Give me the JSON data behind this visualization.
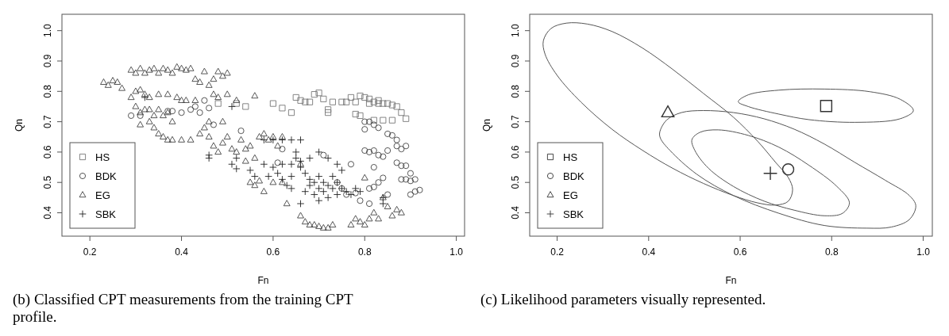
{
  "chart_data": [
    {
      "type": "scatter",
      "xlabel": "Fn",
      "ylabel": "Qn",
      "xlim": [
        0.139,
        1.018
      ],
      "ylim": [
        0.323,
        1.054
      ],
      "xticks": [
        0.2,
        0.4,
        0.6,
        0.8,
        {
          "value": 1,
          "label": "1.0"
        }
      ],
      "yticks": [
        0.4,
        0.5,
        0.6,
        0.7,
        0.8,
        0.9,
        {
          "value": 1,
          "label": "1.0"
        }
      ],
      "legend": "bottom left",
      "grid": false,
      "annotations": [
        "(b) Classified CPT measurements from the training CPT profile."
      ],
      "series": [
        {
          "name": "HS",
          "color": "#777777",
          "marker": "square",
          "x": [
            0.52,
            0.54,
            0.6,
            0.62,
            0.64,
            0.65,
            0.66,
            0.67,
            0.69,
            0.7,
            0.71,
            0.72,
            0.73,
            0.76,
            0.77,
            0.78,
            0.79,
            0.8,
            0.81,
            0.82,
            0.83,
            0.84,
            0.85,
            0.86,
            0.87,
            0.88,
            0.89,
            0.78,
            0.79,
            0.82,
            0.84,
            0.86,
            0.81,
            0.83,
            0.72,
            0.75,
            0.68,
            0.48
          ],
          "values": [
            0.76,
            0.75,
            0.76,
            0.745,
            0.73,
            0.78,
            0.77,
            0.765,
            0.79,
            0.795,
            0.775,
            0.74,
            0.765,
            0.765,
            0.78,
            0.765,
            0.785,
            0.78,
            0.775,
            0.765,
            0.77,
            0.76,
            0.76,
            0.755,
            0.75,
            0.73,
            0.71,
            0.725,
            0.72,
            0.705,
            0.705,
            0.705,
            0.76,
            0.76,
            0.73,
            0.765,
            0.765,
            0.76
          ]
        },
        {
          "name": "BDK",
          "color": "#444444",
          "marker": "circle",
          "x": [
            0.29,
            0.31,
            0.37,
            0.38,
            0.4,
            0.42,
            0.43,
            0.44,
            0.45,
            0.46,
            0.47,
            0.53,
            0.62,
            0.61,
            0.71,
            0.8,
            0.8,
            0.81,
            0.82,
            0.83,
            0.85,
            0.86,
            0.87,
            0.87,
            0.88,
            0.89,
            0.8,
            0.81,
            0.82,
            0.83,
            0.84,
            0.85,
            0.87,
            0.88,
            0.89,
            0.9,
            0.88,
            0.89,
            0.9,
            0.91,
            0.9,
            0.91,
            0.92,
            0.84,
            0.83,
            0.82,
            0.81,
            0.85,
            0.79,
            0.81,
            0.78,
            0.76,
            0.77,
            0.82,
            0.75,
            0.74
          ],
          "values": [
            0.72,
            0.72,
            0.735,
            0.735,
            0.73,
            0.74,
            0.75,
            0.73,
            0.77,
            0.745,
            0.69,
            0.67,
            0.61,
            0.565,
            0.59,
            0.7,
            0.675,
            0.7,
            0.69,
            0.68,
            0.66,
            0.655,
            0.64,
            0.62,
            0.61,
            0.62,
            0.605,
            0.6,
            0.605,
            0.59,
            0.585,
            0.605,
            0.565,
            0.555,
            0.555,
            0.53,
            0.51,
            0.51,
            0.505,
            0.51,
            0.46,
            0.47,
            0.475,
            0.515,
            0.5,
            0.485,
            0.48,
            0.46,
            0.44,
            0.43,
            0.465,
            0.46,
            0.56,
            0.55,
            0.48,
            0.5
          ]
        },
        {
          "name": "EG",
          "color": "#444444",
          "marker": "triangle",
          "x": [
            0.23,
            0.24,
            0.25,
            0.26,
            0.27,
            0.29,
            0.3,
            0.31,
            0.32,
            0.33,
            0.34,
            0.35,
            0.36,
            0.37,
            0.38,
            0.39,
            0.4,
            0.41,
            0.42,
            0.43,
            0.44,
            0.45,
            0.46,
            0.47,
            0.48,
            0.49,
            0.5,
            0.29,
            0.3,
            0.31,
            0.32,
            0.33,
            0.35,
            0.37,
            0.39,
            0.4,
            0.41,
            0.47,
            0.48,
            0.5,
            0.52,
            0.56,
            0.3,
            0.31,
            0.32,
            0.33,
            0.34,
            0.35,
            0.36,
            0.37,
            0.38,
            0.31,
            0.33,
            0.34,
            0.35,
            0.36,
            0.37,
            0.38,
            0.4,
            0.42,
            0.44,
            0.45,
            0.46,
            0.47,
            0.48,
            0.49,
            0.5,
            0.51,
            0.52,
            0.53,
            0.54,
            0.55,
            0.56,
            0.57,
            0.58,
            0.59,
            0.6,
            0.61,
            0.62,
            0.55,
            0.56,
            0.57,
            0.58,
            0.6,
            0.62,
            0.63,
            0.66,
            0.67,
            0.68,
            0.69,
            0.7,
            0.71,
            0.72,
            0.73,
            0.77,
            0.78,
            0.79,
            0.8,
            0.81,
            0.82,
            0.83,
            0.86,
            0.87,
            0.88,
            0.8,
            0.84,
            0.85,
            0.66,
            0.54,
            0.43,
            0.46,
            0.49
          ],
          "values": [
            0.83,
            0.82,
            0.835,
            0.83,
            0.81,
            0.87,
            0.86,
            0.875,
            0.86,
            0.87,
            0.875,
            0.86,
            0.875,
            0.87,
            0.86,
            0.88,
            0.875,
            0.87,
            0.875,
            0.84,
            0.83,
            0.865,
            0.82,
            0.84,
            0.865,
            0.85,
            0.86,
            0.78,
            0.8,
            0.805,
            0.79,
            0.78,
            0.79,
            0.79,
            0.78,
            0.77,
            0.77,
            0.79,
            0.78,
            0.79,
            0.77,
            0.785,
            0.75,
            0.73,
            0.74,
            0.74,
            0.72,
            0.74,
            0.72,
            0.73,
            0.7,
            0.69,
            0.7,
            0.68,
            0.66,
            0.65,
            0.64,
            0.64,
            0.64,
            0.64,
            0.66,
            0.68,
            0.65,
            0.62,
            0.6,
            0.63,
            0.65,
            0.61,
            0.6,
            0.64,
            0.61,
            0.62,
            0.58,
            0.65,
            0.66,
            0.64,
            0.65,
            0.62,
            0.65,
            0.5,
            0.49,
            0.505,
            0.47,
            0.5,
            0.5,
            0.43,
            0.39,
            0.37,
            0.36,
            0.36,
            0.355,
            0.35,
            0.35,
            0.36,
            0.36,
            0.38,
            0.37,
            0.36,
            0.38,
            0.4,
            0.38,
            0.39,
            0.41,
            0.4,
            0.515,
            0.45,
            0.42,
            0.56,
            0.57,
            0.77,
            0.7,
            0.7
          ]
        },
        {
          "name": "SBK",
          "color": "#222222",
          "marker": "cross",
          "x": [
            0.32,
            0.51,
            0.46,
            0.46,
            0.51,
            0.52,
            0.52,
            0.55,
            0.56,
            0.58,
            0.59,
            0.6,
            0.61,
            0.62,
            0.63,
            0.64,
            0.58,
            0.6,
            0.62,
            0.64,
            0.66,
            0.65,
            0.65,
            0.66,
            0.66,
            0.67,
            0.68,
            0.68,
            0.67,
            0.66,
            0.69,
            0.69,
            0.7,
            0.7,
            0.7,
            0.71,
            0.71,
            0.72,
            0.72,
            0.73,
            0.73,
            0.74,
            0.74,
            0.75,
            0.75,
            0.76,
            0.77,
            0.78,
            0.79,
            0.7,
            0.72,
            0.74,
            0.68,
            0.64,
            0.64,
            0.62,
            0.84,
            0.84
          ],
          "values": [
            0.78,
            0.75,
            0.58,
            0.59,
            0.56,
            0.545,
            0.58,
            0.54,
            0.52,
            0.56,
            0.52,
            0.55,
            0.53,
            0.51,
            0.49,
            0.48,
            0.64,
            0.64,
            0.64,
            0.64,
            0.64,
            0.6,
            0.58,
            0.57,
            0.55,
            0.53,
            0.51,
            0.49,
            0.47,
            0.43,
            0.5,
            0.46,
            0.52,
            0.48,
            0.44,
            0.5,
            0.47,
            0.49,
            0.45,
            0.52,
            0.48,
            0.5,
            0.46,
            0.48,
            0.54,
            0.47,
            0.46,
            0.48,
            0.47,
            0.6,
            0.58,
            0.56,
            0.58,
            0.56,
            0.52,
            0.56,
            0.45,
            0.43
          ]
        }
      ]
    },
    {
      "type": "scatter",
      "xlabel": "Fn",
      "ylabel": "Qn",
      "xlim": [
        0.14,
        1.02
      ],
      "ylim": [
        0.323,
        1.054
      ],
      "xticks": [
        0.2,
        0.4,
        0.6,
        0.8,
        {
          "value": 1,
          "label": "1.0"
        }
      ],
      "yticks": [
        0.4,
        0.5,
        0.6,
        0.7,
        0.8,
        0.9,
        {
          "value": 1,
          "label": "1.0"
        }
      ],
      "legend": "bottom left",
      "grid": false,
      "annotations": [
        "(c) Likelihood parameters visually represented."
      ],
      "series": [
        {
          "name": "HS",
          "color": "#333333",
          "marker": "square",
          "x": [
            0.788
          ],
          "values": [
            0.752
          ]
        },
        {
          "name": "BDK",
          "color": "#333333",
          "marker": "circle",
          "x": [
            0.705
          ],
          "values": [
            0.543
          ]
        },
        {
          "name": "EG",
          "color": "#333333",
          "marker": "triangle",
          "x": [
            0.442
          ],
          "values": [
            0.73
          ]
        },
        {
          "name": "SBK",
          "color": "#333333",
          "marker": "cross",
          "x": [
            0.666
          ],
          "values": [
            0.53
          ]
        }
      ]
    }
  ]
}
